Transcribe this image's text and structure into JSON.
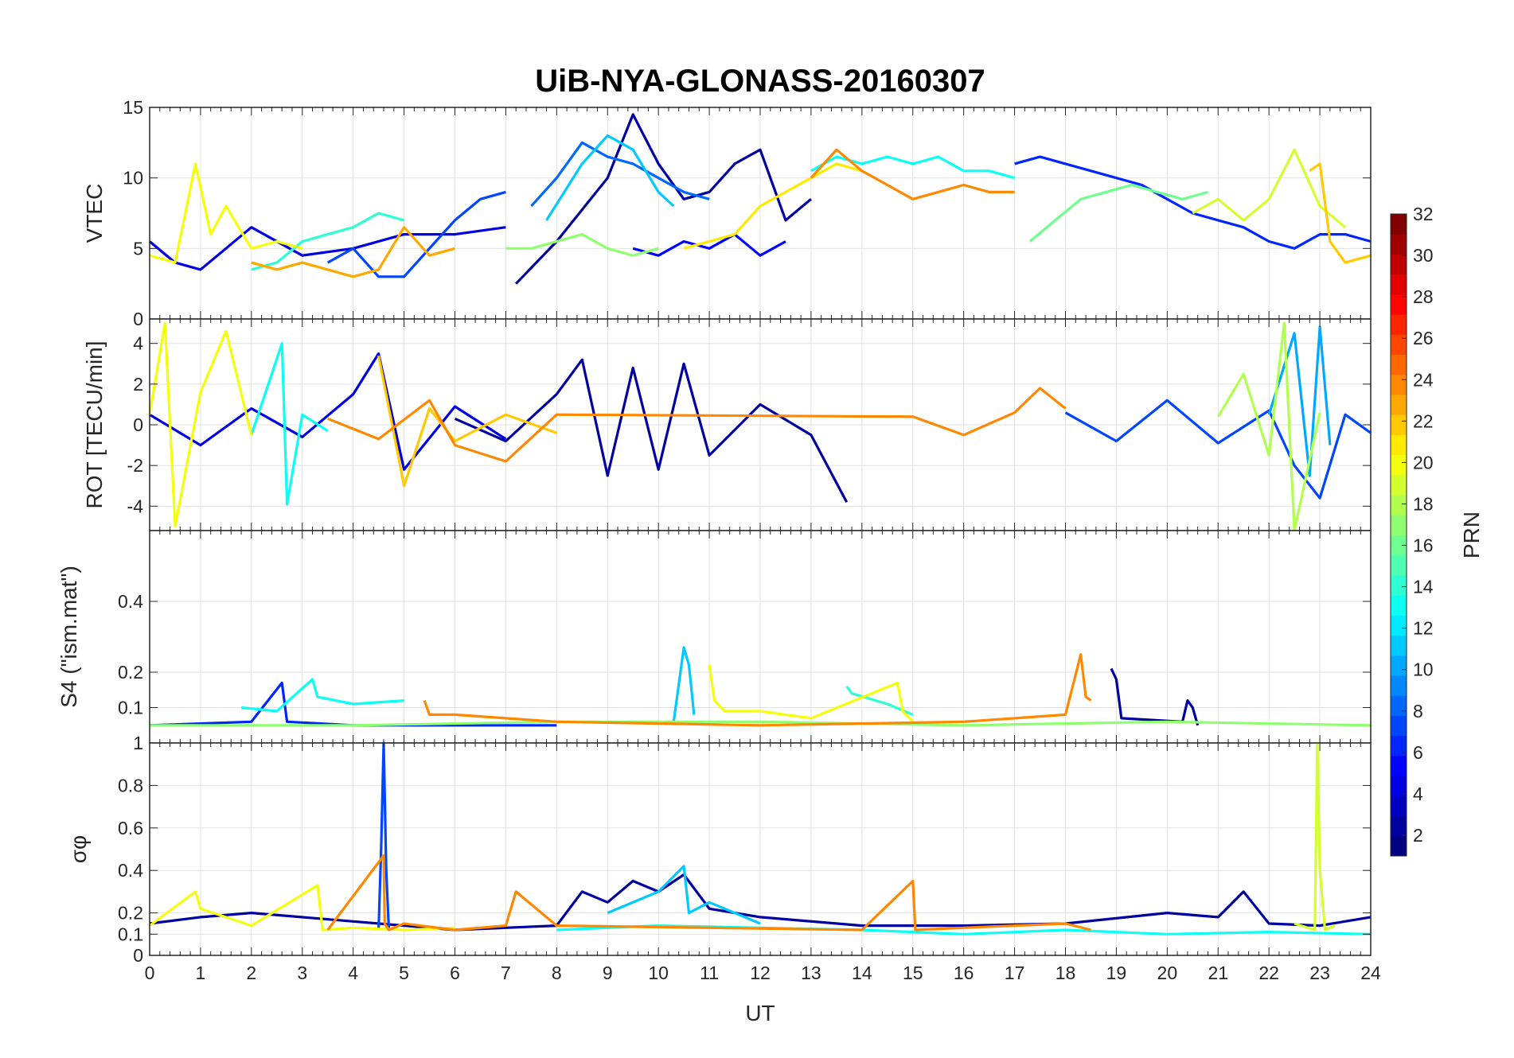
{
  "chart_data": {
    "type": "line",
    "title": "UiB-NYA-GLONASS-20160307",
    "xlabel": "UT",
    "xlim": [
      0,
      24
    ],
    "xticks": [
      0,
      1,
      2,
      3,
      4,
      5,
      6,
      7,
      8,
      9,
      10,
      11,
      12,
      13,
      14,
      15,
      16,
      17,
      18,
      19,
      20,
      21,
      22,
      23,
      24
    ],
    "grid": true,
    "colorbar": {
      "label": "PRN",
      "range": [
        1,
        32
      ],
      "ticks": [
        2,
        4,
        6,
        8,
        10,
        12,
        14,
        16,
        18,
        20,
        22,
        24,
        26,
        28,
        30,
        32
      ],
      "colormap": "jet",
      "location": "right"
    },
    "panels": [
      {
        "name": "vtec",
        "ylabel": "VTEC",
        "ylim": [
          0,
          15
        ],
        "yticks": [
          0,
          5,
          10,
          15
        ],
        "series": [
          {
            "prn": 2,
            "x": [
              7.2,
              8.0,
              9.0,
              9.5,
              10.0,
              10.5,
              11.0,
              11.5,
              12.0,
              12.5,
              13.0
            ],
            "y": [
              2.5,
              5.5,
              10.0,
              14.5,
              11.0,
              8.5,
              9.0,
              11.0,
              12.0,
              7.0,
              8.5
            ]
          },
          {
            "prn": 4,
            "x": [
              0.0,
              0.5,
              1.0,
              1.5,
              2.0,
              3.0,
              4.0,
              5.0,
              6.0,
              7.0
            ],
            "y": [
              5.5,
              4.0,
              3.5,
              5.0,
              6.5,
              4.5,
              5.0,
              6.0,
              6.0,
              6.5
            ]
          },
          {
            "prn": 5,
            "x": [
              9.5,
              10.0,
              10.5,
              11.0,
              11.5,
              12.0,
              12.5
            ],
            "y": [
              5.0,
              4.5,
              5.5,
              5.0,
              6.0,
              4.5,
              5.5
            ]
          },
          {
            "prn": 6,
            "x": [
              17.0,
              17.5,
              18.0,
              18.5,
              19.0,
              19.5,
              20.0,
              20.5,
              21.0,
              21.5,
              22.0,
              22.5,
              23.0,
              23.5,
              24.0
            ],
            "y": [
              11.0,
              11.5,
              11.0,
              10.5,
              10.0,
              9.5,
              8.5,
              7.5,
              7.0,
              6.5,
              5.5,
              5.0,
              6.0,
              6.0,
              5.5
            ]
          },
          {
            "prn": 7,
            "x": [
              3.5,
              4.0,
              4.5,
              5.0,
              5.5,
              6.0,
              6.5,
              7.0
            ],
            "y": [
              4.0,
              5.0,
              3.0,
              3.0,
              5.0,
              7.0,
              8.5,
              9.0
            ]
          },
          {
            "prn": 8,
            "x": [
              7.5,
              8.0,
              8.5,
              9.0,
              9.5,
              10.0,
              10.5,
              11.0
            ],
            "y": [
              8.0,
              10.0,
              12.5,
              11.5,
              11.0,
              10.0,
              9.0,
              8.5
            ]
          },
          {
            "prn": 11,
            "x": [
              7.8,
              8.5,
              9.0,
              9.5,
              10.0,
              10.3
            ],
            "y": [
              7.0,
              11.0,
              13.0,
              12.0,
              9.0,
              8.0
            ]
          },
          {
            "prn": 13,
            "x": [
              13.0,
              13.5,
              14.0,
              14.5,
              15.0,
              15.5,
              16.0,
              16.5,
              17.0
            ],
            "y": [
              10.5,
              11.5,
              11.0,
              11.5,
              11.0,
              11.5,
              10.5,
              10.5,
              10.0
            ]
          },
          {
            "prn": 14,
            "x": [
              2.0,
              2.5,
              3.0,
              3.5,
              4.0,
              4.5,
              5.0
            ],
            "y": [
              3.5,
              4.0,
              5.5,
              6.0,
              6.5,
              7.5,
              7.0
            ]
          },
          {
            "prn": 16,
            "x": [
              17.3,
              17.8,
              18.3,
              18.8,
              19.3,
              19.8,
              20.3,
              20.8
            ],
            "y": [
              5.5,
              7.0,
              8.5,
              9.0,
              9.5,
              9.0,
              8.5,
              9.0
            ]
          },
          {
            "prn": 17,
            "x": [
              7.0,
              7.5,
              8.0,
              8.5,
              9.0,
              9.5,
              10.0
            ],
            "y": [
              5.0,
              5.0,
              5.5,
              6.0,
              5.0,
              4.5,
              5.0
            ]
          },
          {
            "prn": 19,
            "x": [
              20.5,
              21.0,
              21.5,
              22.0,
              22.5,
              23.0,
              23.5
            ],
            "y": [
              7.5,
              8.5,
              7.0,
              8.5,
              12.0,
              8.0,
              6.5
            ]
          },
          {
            "prn": 20,
            "x": [
              0.0,
              0.5,
              0.9,
              1.2,
              1.5,
              2.0,
              2.5,
              3.0
            ],
            "y": [
              4.5,
              4.0,
              11.0,
              6.0,
              8.0,
              5.0,
              5.5,
              5.0
            ]
          },
          {
            "prn": 21,
            "x": [
              10.5,
              11.0,
              11.5,
              12.0,
              12.5,
              13.0,
              13.5,
              14.0
            ],
            "y": [
              5.0,
              5.5,
              6.0,
              8.0,
              9.0,
              10.0,
              11.0,
              10.5
            ]
          },
          {
            "prn": 22,
            "x": [
              22.8,
              23.0,
              23.2,
              23.5,
              24.0
            ],
            "y": [
              10.5,
              11.0,
              5.5,
              4.0,
              4.5
            ]
          },
          {
            "prn": 23,
            "x": [
              2.0,
              2.5,
              3.0,
              3.5,
              4.0,
              4.5,
              5.0,
              5.5,
              6.0
            ],
            "y": [
              4.0,
              3.5,
              4.0,
              3.5,
              3.0,
              3.5,
              6.5,
              4.5,
              5.0
            ]
          },
          {
            "prn": 24,
            "x": [
              13.0,
              13.5,
              14.0,
              14.5,
              15.0,
              15.5,
              16.0,
              16.5,
              17.0
            ],
            "y": [
              10.0,
              12.0,
              10.5,
              9.5,
              8.5,
              9.0,
              9.5,
              9.0,
              9.0
            ]
          }
        ]
      },
      {
        "name": "rot",
        "ylabel": "ROT [TECU/min]",
        "ylim": [
          -5.2,
          5.2
        ],
        "yticks": [
          -4,
          -2,
          0,
          2,
          4
        ],
        "series": [
          {
            "prn": 2,
            "x": [
              6.0,
              7.0,
              8.0,
              8.5,
              9.0,
              9.5,
              10.0,
              10.5,
              11.0,
              12.0,
              13.0,
              13.7
            ],
            "y": [
              0.3,
              -0.8,
              1.5,
              3.2,
              -2.5,
              2.8,
              -2.2,
              3.0,
              -1.5,
              1.0,
              -0.5,
              -3.8
            ]
          },
          {
            "prn": 4,
            "x": [
              0.0,
              1.0,
              2.0,
              3.0,
              4.0,
              4.5,
              5.0,
              6.0,
              7.0
            ],
            "y": [
              0.5,
              -1.0,
              0.8,
              -0.6,
              1.5,
              3.5,
              -2.2,
              0.9,
              -0.7
            ]
          },
          {
            "prn": 7,
            "x": [
              18.0,
              19.0,
              20.0,
              21.0,
              22.0,
              22.5,
              23.0,
              23.5,
              24.0
            ],
            "y": [
              0.6,
              -0.8,
              1.2,
              -0.9,
              0.7,
              -2.0,
              -3.6,
              0.5,
              -0.4
            ]
          },
          {
            "prn": 10,
            "x": [
              22.0,
              22.5,
              22.8,
              23.0,
              23.2
            ],
            "y": [
              0.5,
              4.5,
              -2.5,
              4.8,
              -1.0
            ]
          },
          {
            "prn": 13,
            "x": [
              2.0,
              2.6,
              2.7,
              3.0,
              3.5
            ],
            "y": [
              -0.5,
              4.0,
              -3.9,
              0.5,
              -0.3
            ]
          },
          {
            "prn": 18,
            "x": [
              21.0,
              21.5,
              22.0,
              22.3,
              22.5,
              23.0
            ],
            "y": [
              0.4,
              2.5,
              -1.5,
              5.0,
              -5.2,
              0.6
            ]
          },
          {
            "prn": 20,
            "x": [
              0.0,
              0.3,
              0.5,
              1.0,
              1.5,
              2.0
            ],
            "y": [
              0.5,
              5.0,
              -5.0,
              1.6,
              4.6,
              -0.5
            ]
          },
          {
            "prn": 22,
            "x": [
              4.5,
              5.0,
              5.5,
              6.0,
              7.0,
              8.0
            ],
            "y": [
              3.4,
              -3.0,
              0.8,
              -0.8,
              0.5,
              -0.4
            ]
          },
          {
            "prn": 24,
            "x": [
              3.5,
              4.5,
              5.5,
              6.0,
              7.0,
              8.0,
              15.0,
              16.0,
              17.0,
              17.5,
              18.0
            ],
            "y": [
              0.3,
              -0.7,
              1.2,
              -1.0,
              -1.8,
              0.5,
              0.4,
              -0.5,
              0.6,
              1.8,
              0.8
            ]
          }
        ]
      },
      {
        "name": "s4",
        "ylabel": "S4 (\"ism.mat\")",
        "ylim": [
          0,
          0.6
        ],
        "yticks": [
          0.1,
          0.2,
          0.4
        ],
        "series": [
          {
            "prn": 2,
            "x": [
              18.9,
              19.0,
              19.1,
              20.3,
              20.4,
              20.5,
              20.6
            ],
            "y": [
              0.21,
              0.18,
              0.07,
              0.06,
              0.12,
              0.1,
              0.05
            ]
          },
          {
            "prn": 6,
            "x": [
              0.0,
              2.0,
              2.6,
              2.7,
              4.0,
              6.0,
              8.0
            ],
            "y": [
              0.05,
              0.06,
              0.17,
              0.06,
              0.05,
              0.05,
              0.05
            ]
          },
          {
            "prn": 11,
            "x": [
              10.3,
              10.5,
              10.6,
              10.7
            ],
            "y": [
              0.06,
              0.27,
              0.22,
              0.08
            ]
          },
          {
            "prn": 13,
            "x": [
              1.8,
              2.5,
              3.2,
              3.3,
              4.0,
              5.0
            ],
            "y": [
              0.1,
              0.09,
              0.18,
              0.13,
              0.11,
              0.12
            ]
          },
          {
            "prn": 14,
            "x": [
              13.7,
              13.8,
              14.5,
              15.0
            ],
            "y": [
              0.16,
              0.14,
              0.11,
              0.08
            ]
          },
          {
            "prn": 17,
            "x": [
              0.0,
              4.0,
              8.0,
              12.0,
              16.0,
              20.0,
              24.0
            ],
            "y": [
              0.05,
              0.05,
              0.06,
              0.06,
              0.05,
              0.06,
              0.05
            ]
          },
          {
            "prn": 20,
            "x": [
              11.0,
              11.1,
              11.3,
              12.0,
              13.0,
              14.7,
              14.8,
              15.0
            ],
            "y": [
              0.22,
              0.12,
              0.09,
              0.09,
              0.07,
              0.17,
              0.09,
              0.06
            ]
          },
          {
            "prn": 24,
            "x": [
              5.4,
              5.5,
              6.0,
              7.0,
              8.0,
              12.0,
              16.0,
              17.0,
              18.0,
              18.3,
              18.4,
              18.5
            ],
            "y": [
              0.12,
              0.08,
              0.08,
              0.07,
              0.06,
              0.05,
              0.06,
              0.07,
              0.08,
              0.25,
              0.13,
              0.12
            ]
          }
        ]
      },
      {
        "name": "sigma_phi",
        "ylabel": "σφ",
        "ylim": [
          0,
          1
        ],
        "yticks": [
          0,
          0.1,
          0.2,
          0.4,
          0.6,
          0.8,
          1
        ],
        "series": [
          {
            "prn": 2,
            "x": [
              0.0,
              1.0,
              2.0,
              4.0,
              6.0,
              8.0,
              8.5,
              9.0,
              9.5,
              10.0,
              10.5,
              11.0,
              12.0,
              14.0,
              16.0,
              18.0,
              20.0,
              21.0,
              21.5,
              22.0,
              23.0,
              24.0
            ],
            "y": [
              0.15,
              0.18,
              0.2,
              0.16,
              0.12,
              0.14,
              0.3,
              0.25,
              0.35,
              0.3,
              0.38,
              0.22,
              0.18,
              0.14,
              0.14,
              0.15,
              0.2,
              0.18,
              0.3,
              0.15,
              0.14,
              0.18
            ]
          },
          {
            "prn": 7,
            "x": [
              4.5,
              4.55,
              4.6,
              4.65,
              4.7
            ],
            "y": [
              0.12,
              0.5,
              1.0,
              0.4,
              0.13
            ]
          },
          {
            "prn": 11,
            "x": [
              9.0,
              10.0,
              10.5,
              10.6,
              11.0,
              12.0
            ],
            "y": [
              0.2,
              0.3,
              0.42,
              0.2,
              0.25,
              0.15
            ]
          },
          {
            "prn": 13,
            "x": [
              8.0,
              10.0,
              12.0,
              14.0,
              16.0,
              18.0,
              20.0,
              22.0,
              24.0
            ],
            "y": [
              0.12,
              0.14,
              0.13,
              0.12,
              0.1,
              0.12,
              0.1,
              0.11,
              0.1
            ]
          },
          {
            "prn": 19,
            "x": [
              22.5,
              22.9,
              22.95,
              23.0,
              23.1,
              23.3
            ],
            "y": [
              0.15,
              0.12,
              1.0,
              0.4,
              0.12,
              0.14
            ]
          },
          {
            "prn": 20,
            "x": [
              0.0,
              0.9,
              1.0,
              2.0,
              3.3,
              3.4,
              4.0,
              5.0,
              6.0
            ],
            "y": [
              0.14,
              0.3,
              0.22,
              0.14,
              0.33,
              0.12,
              0.13,
              0.12,
              0.13
            ]
          },
          {
            "prn": 24,
            "x": [
              3.5,
              4.6,
              4.62,
              4.7,
              5.0,
              6.0,
              7.0,
              7.2,
              8.0,
              14.0,
              15.0,
              15.05,
              16.0,
              17.0,
              18.0,
              18.5
            ],
            "y": [
              0.12,
              0.47,
              0.15,
              0.12,
              0.15,
              0.12,
              0.14,
              0.3,
              0.14,
              0.12,
              0.35,
              0.12,
              0.13,
              0.14,
              0.15,
              0.12
            ]
          }
        ]
      }
    ]
  }
}
